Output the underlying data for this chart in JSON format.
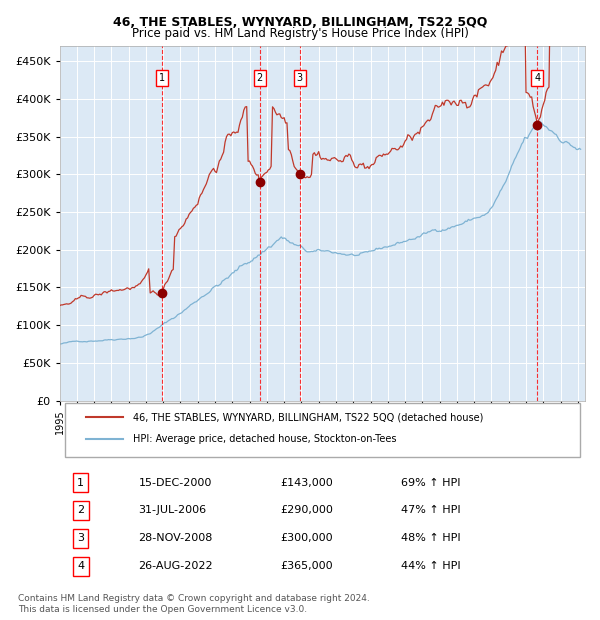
{
  "title": "46, THE STABLES, WYNYARD, BILLINGHAM, TS22 5QQ",
  "subtitle": "Price paid vs. HM Land Registry's House Price Index (HPI)",
  "background_color": "#dce9f5",
  "plot_bg_color": "#dce9f5",
  "red_line_color": "#c0392b",
  "blue_line_color": "#7fb3d3",
  "marker_color": "#8b0000",
  "sale_dates": [
    "2000-12-15",
    "2006-07-31",
    "2008-11-28",
    "2022-08-26"
  ],
  "sale_prices": [
    143000,
    290000,
    300000,
    365000
  ],
  "sale_labels": [
    "1",
    "2",
    "3",
    "4"
  ],
  "sale_pct": [
    "69% ↑ HPI",
    "47% ↑ HPI",
    "48% ↑ HPI",
    "44% ↑ HPI"
  ],
  "sale_dates_str": [
    "15-DEC-2000",
    "31-JUL-2006",
    "28-NOV-2008",
    "26-AUG-2022"
  ],
  "sale_prices_str": [
    "£143,000",
    "£290,000",
    "£300,000",
    "£365,000"
  ],
  "legend_red": "46, THE STABLES, WYNYARD, BILLINGHAM, TS22 5QQ (detached house)",
  "legend_blue": "HPI: Average price, detached house, Stockton-on-Tees",
  "footer": "Contains HM Land Registry data © Crown copyright and database right 2024.\nThis data is licensed under the Open Government Licence v3.0.",
  "ylim": [
    0,
    470000
  ],
  "yticks": [
    0,
    50000,
    100000,
    150000,
    200000,
    250000,
    300000,
    350000,
    400000,
    450000
  ],
  "ytick_labels": [
    "£0",
    "£50K",
    "£100K",
    "£150K",
    "£200K",
    "£250K",
    "£300K",
    "£350K",
    "£400K",
    "£450K"
  ],
  "year_start": 1995,
  "year_end": 2025
}
